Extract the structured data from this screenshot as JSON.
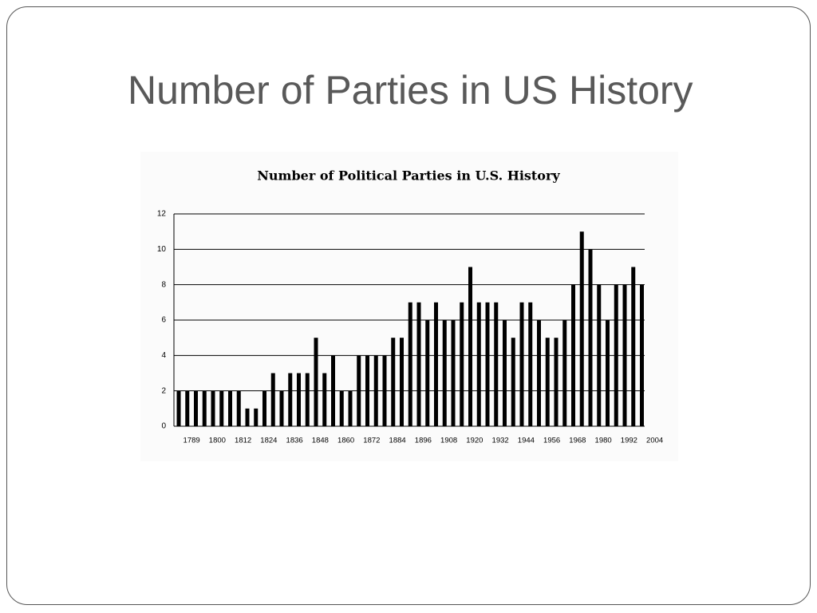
{
  "slide_title": "Number of Parties in US History",
  "chart_data": {
    "type": "bar",
    "title": "Number of Political Parties in U.S. History",
    "values": [
      2,
      2,
      2,
      2,
      2,
      2,
      2,
      2,
      1,
      1,
      2,
      3,
      2,
      3,
      3,
      3,
      5,
      3,
      4,
      2,
      2,
      4,
      4,
      4,
      4,
      5,
      5,
      7,
      7,
      6,
      7,
      6,
      6,
      7,
      9,
      7,
      7,
      7,
      6,
      5,
      7,
      7,
      6,
      5,
      5,
      6,
      8,
      11,
      10,
      8,
      6,
      8,
      8,
      9,
      8
    ],
    "xticks": [
      "1789",
      "1800",
      "1812",
      "1824",
      "1836",
      "1848",
      "1860",
      "1872",
      "1884",
      "1896",
      "1908",
      "1920",
      "1932",
      "1944",
      "1956",
      "1968",
      "1980",
      "1992",
      "2004"
    ],
    "ylim": [
      0,
      12
    ],
    "yticks": [
      0,
      2,
      4,
      6,
      8,
      10,
      12
    ],
    "color": "#000000",
    "grid": true
  }
}
